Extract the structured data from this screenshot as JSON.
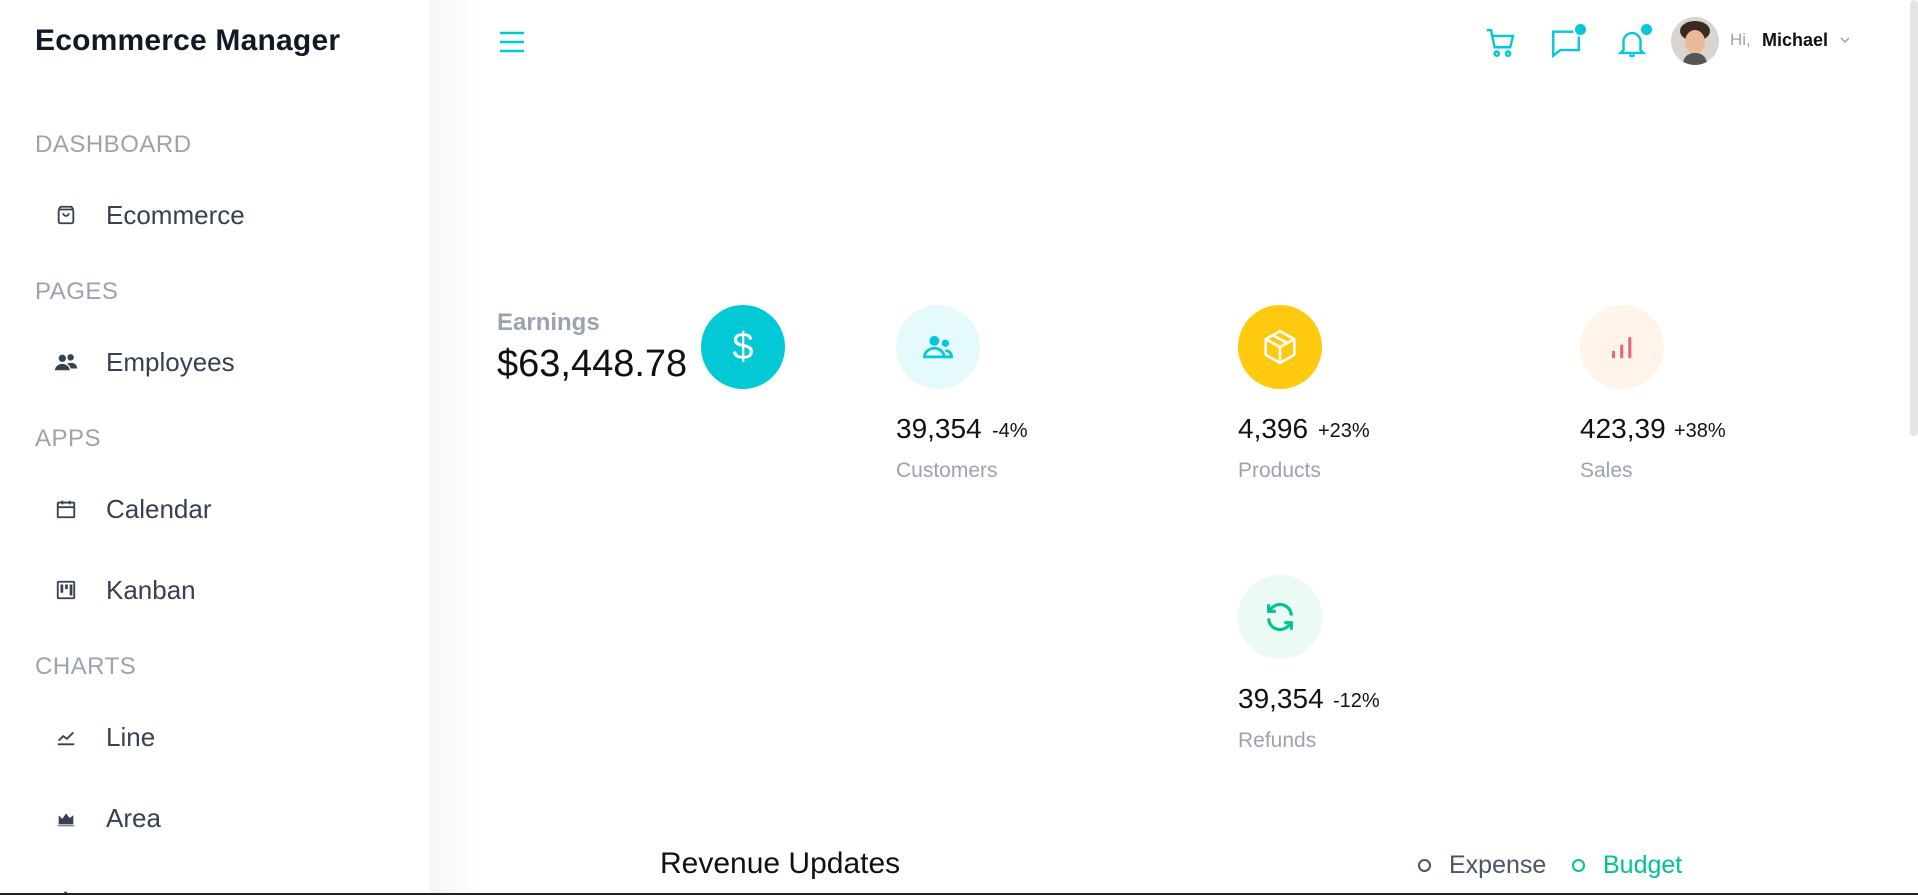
{
  "app": {
    "brand": "Ecommerce Manager"
  },
  "sidebar": {
    "sections": [
      {
        "title": "DASHBOARD",
        "items": [
          {
            "label": "Ecommerce",
            "icon": "shopping-bag-icon"
          }
        ]
      },
      {
        "title": "PAGES",
        "items": [
          {
            "label": "Employees",
            "icon": "people-icon"
          }
        ]
      },
      {
        "title": "APPS",
        "items": [
          {
            "label": "Calendar",
            "icon": "calendar-icon"
          },
          {
            "label": "Kanban",
            "icon": "kanban-icon"
          }
        ]
      },
      {
        "title": "CHARTS",
        "items": [
          {
            "label": "Line",
            "icon": "line-chart-icon"
          },
          {
            "label": "Area",
            "icon": "area-chart-icon"
          }
        ]
      }
    ]
  },
  "header": {
    "greeting": "Hi,",
    "username": "Michael",
    "icons": [
      "menu-icon",
      "cart-icon",
      "chat-icon",
      "bell-icon",
      "avatar",
      "chevron-down-icon"
    ],
    "accent": "#03c9d7"
  },
  "earnings": {
    "label": "Earnings",
    "value": "$63,448.78",
    "icon_glyph": "$",
    "color": "#03c9d7"
  },
  "stats": [
    {
      "value": "39,354",
      "change": "-4%",
      "title": "Customers",
      "icon": "customers-icon",
      "bg": "#e5fafb",
      "fg": "#03c9d7"
    },
    {
      "value": "4,396",
      "change": "+23%",
      "title": "Products",
      "icon": "box-icon",
      "bg": "#fec90f",
      "fg": "#ffffff"
    },
    {
      "value": "423,39",
      "change": "+38%",
      "title": "Sales",
      "icon": "bar-chart-icon",
      "bg": "#fff4ea",
      "fg": "#e46a76"
    },
    {
      "value": "39,354",
      "change": "-12%",
      "title": "Refunds",
      "icon": "refresh-icon",
      "bg": "#ebfaf2",
      "fg": "#00c292"
    }
  ],
  "revenue": {
    "title": "Revenue Updates",
    "legend": [
      {
        "label": "Expense",
        "color": "#4b5563"
      },
      {
        "label": "Budget",
        "color": "#00c292"
      }
    ]
  }
}
